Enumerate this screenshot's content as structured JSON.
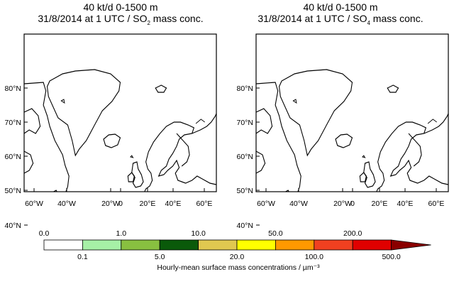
{
  "panels": [
    {
      "title_line1": "40 kt/d 0-1500 m",
      "title_line2_prefix": "31/8/2014 at 1 UTC / SO",
      "species_subscript": "2",
      "title_line2_suffix": " mass conc."
    },
    {
      "title_line1": "40 kt/d 0-1500 m",
      "title_line2_prefix": "31/8/2014 at 1 UTC / SO",
      "species_subscript": "4",
      "title_line2_suffix": " mass conc."
    }
  ],
  "lat_labels": [
    "80°N",
    "70°N",
    "60°N",
    "50°N",
    "40°N"
  ],
  "lon_labels": [
    "60°W",
    "40°W",
    "20°W",
    "0",
    "20°E",
    "40°E",
    "60°E"
  ],
  "colorbar": {
    "top_labels": [
      "0.0",
      "1.0",
      "10.0",
      "50.0",
      "200.0"
    ],
    "bottom_labels": [
      "0.1",
      "5.0",
      "20.0",
      "100.0",
      "500.0"
    ],
    "colors": [
      "#ffffff",
      "#a6f0a6",
      "#88c040",
      "#0a5a0a",
      "#e0c850",
      "#ffff00",
      "#ff9900",
      "#f04020",
      "#e00000",
      "#8a0000"
    ],
    "caption": "Hourly-mean surface mass concentrations  / µm⁻³"
  }
}
